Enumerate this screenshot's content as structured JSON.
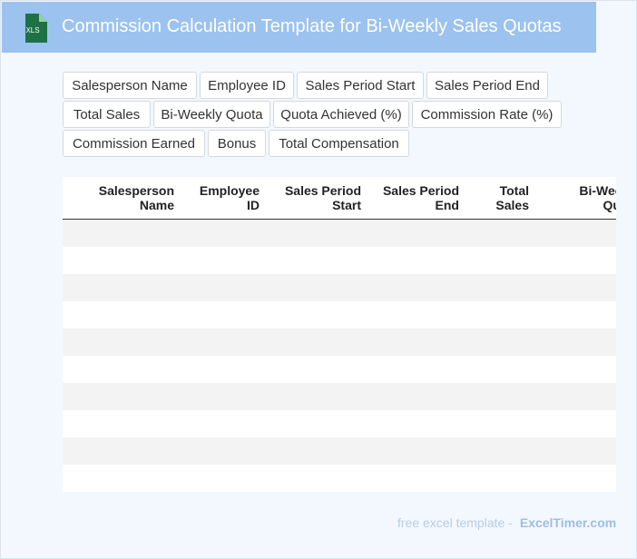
{
  "header": {
    "title": "Commission Calculation Template for Bi-Weekly Sales Quotas",
    "file_icon_label": "XLS",
    "background_color": "#9cc2ef"
  },
  "field_chips": [
    "Salesperson Name",
    "Employee ID",
    "Sales Period Start",
    "Sales Period End",
    "Total Sales",
    "Bi-Weekly Quota",
    "Quota Achieved (%)",
    "Commission Rate (%)",
    "Commission Earned",
    "Bonus",
    "Total Compensation"
  ],
  "table": {
    "columns": [
      [
        "Salesperson",
        "Name"
      ],
      [
        "Employee",
        "ID"
      ],
      [
        "Sales Period",
        "Start"
      ],
      [
        "Sales Period",
        "End"
      ],
      [
        "Total",
        "Sales"
      ],
      [
        "Bi-Weekly",
        "Quota"
      ]
    ],
    "row_count": 10
  },
  "footer": {
    "lead": "free excel template -",
    "brand": "ExcelTimer.com"
  },
  "colors": {
    "accent_green": "#1e7145",
    "stripe": "#f3f3f3",
    "page_background": "#f3f8fe"
  }
}
